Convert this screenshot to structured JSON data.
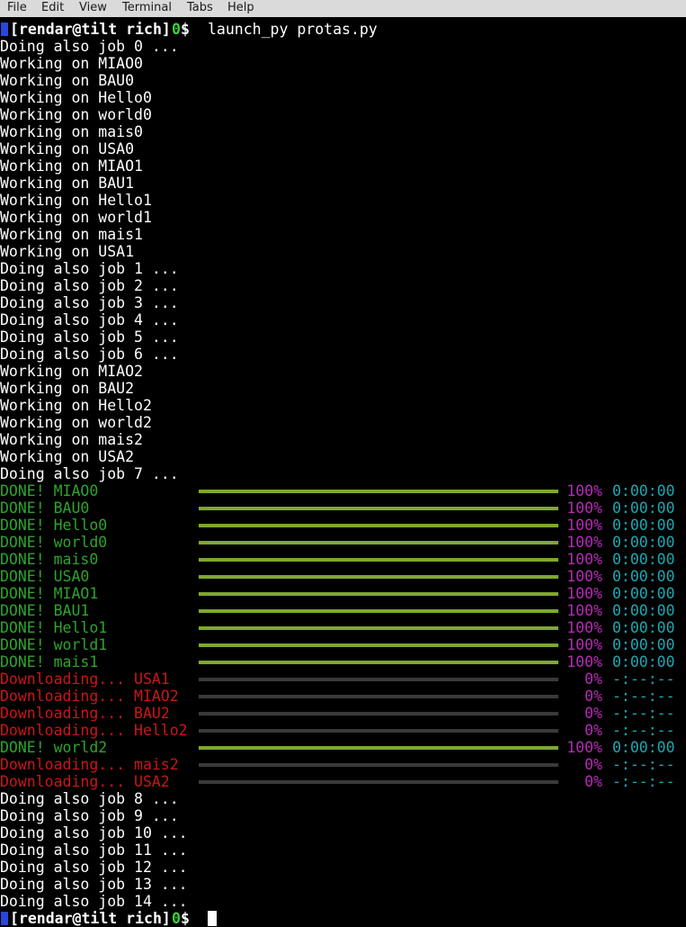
{
  "menu": [
    "File",
    "Edit",
    "View",
    "Terminal",
    "Tabs",
    "Help"
  ],
  "terminal": {
    "prompt": {
      "user_host": "[rendar@tilt rich]",
      "status": "0",
      "symbol": "$"
    },
    "command": "launch_py protas.py",
    "output_before": [
      "Doing also job 0 ...",
      "Working on MIAO0",
      "Working on BAU0",
      "Working on Hello0",
      "Working on world0",
      "Working on mais0",
      "Working on USA0",
      "Working on MIAO1",
      "Working on BAU1",
      "Working on Hello1",
      "Working on world1",
      "Working on mais1",
      "Working on USA1",
      "Doing also job 1 ...",
      "Doing also job 2 ...",
      "Doing also job 3 ...",
      "Doing also job 4 ...",
      "Doing also job 5 ...",
      "Doing also job 6 ...",
      "Working on MIAO2",
      "Working on BAU2",
      "Working on Hello2",
      "Working on world2",
      "Working on mais2",
      "Working on USA2",
      "Doing also job 7 ..."
    ],
    "progress": [
      {
        "label": "DONE! MIAO0",
        "value": 100,
        "value_label": "100%",
        "time": "0:00:00",
        "color": "#2ca52c"
      },
      {
        "label": "DONE! BAU0",
        "value": 100,
        "value_label": "100%",
        "time": "0:00:00",
        "color": "#2ca52c"
      },
      {
        "label": "DONE! Hello0",
        "value": 100,
        "value_label": "100%",
        "time": "0:00:00",
        "color": "#2ca52c"
      },
      {
        "label": "DONE! world0",
        "value": 100,
        "value_label": "100%",
        "time": "0:00:00",
        "color": "#2ca52c"
      },
      {
        "label": "DONE! mais0",
        "value": 100,
        "value_label": "100%",
        "time": "0:00:00",
        "color": "#2ca52c"
      },
      {
        "label": "DONE! USA0",
        "value": 100,
        "value_label": "100%",
        "time": "0:00:00",
        "color": "#2ca52c"
      },
      {
        "label": "DONE! MIAO1",
        "value": 100,
        "value_label": "100%",
        "time": "0:00:00",
        "color": "#2ca52c"
      },
      {
        "label": "DONE! BAU1",
        "value": 100,
        "value_label": "100%",
        "time": "0:00:00",
        "color": "#2ca52c"
      },
      {
        "label": "DONE! Hello1",
        "value": 100,
        "value_label": "100%",
        "time": "0:00:00",
        "color": "#2ca52c"
      },
      {
        "label": "DONE! world1",
        "value": 100,
        "value_label": "100%",
        "time": "0:00:00",
        "color": "#2ca52c"
      },
      {
        "label": "DONE! mais1",
        "value": 100,
        "value_label": "100%",
        "time": "0:00:00",
        "color": "#2ca52c"
      },
      {
        "label": "Downloading... USA1",
        "value": 0,
        "value_label": "0%",
        "time": "-:--:--",
        "color": "#cc1616"
      },
      {
        "label": "Downloading... MIAO2",
        "value": 0,
        "value_label": "0%",
        "time": "-:--:--",
        "color": "#cc1616"
      },
      {
        "label": "Downloading... BAU2",
        "value": 0,
        "value_label": "0%",
        "time": "-:--:--",
        "color": "#cc1616"
      },
      {
        "label": "Downloading... Hello2",
        "value": 0,
        "value_label": "0%",
        "time": "-:--:--",
        "color": "#cc1616"
      },
      {
        "label": "DONE! world2",
        "value": 100,
        "value_label": "100%",
        "time": "0:00:00",
        "color": "#2ca52c"
      },
      {
        "label": "Downloading... mais2",
        "value": 0,
        "value_label": "0%",
        "time": "-:--:--",
        "color": "#cc1616"
      },
      {
        "label": "Downloading... USA2",
        "value": 0,
        "value_label": "0%",
        "time": "-:--:--",
        "color": "#cc1616"
      }
    ],
    "output_after": [
      "Doing also job 8 ...",
      "Doing also job 9 ...",
      "Doing also job 10 ...",
      "Doing also job 11 ...",
      "Doing also job 12 ...",
      "Doing also job 13 ...",
      "Doing also job 14 ..."
    ]
  }
}
